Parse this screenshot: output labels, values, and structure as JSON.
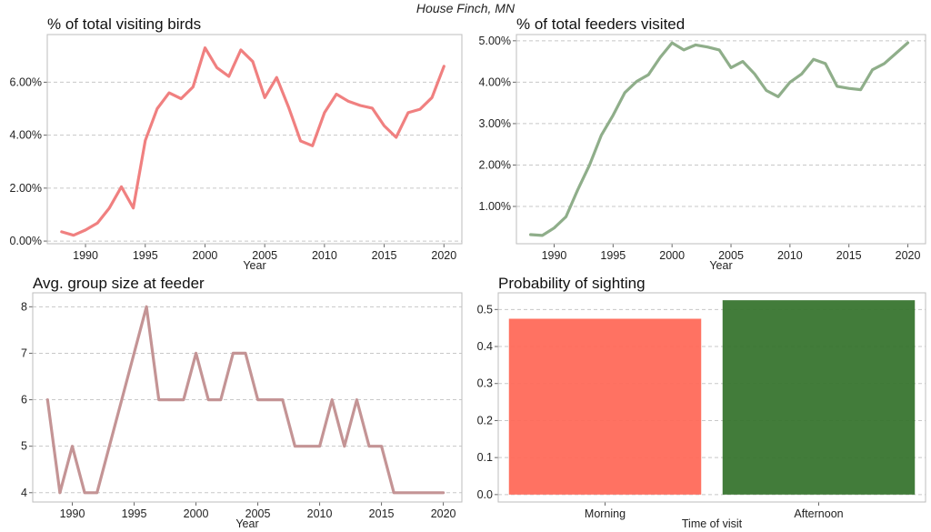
{
  "suptitle": "House Finch, MN",
  "colors": {
    "birds_line": "#f08080",
    "feeders_line": "#8fae8a",
    "group_line": "#c49495",
    "morning_bar": "#ff6a5a",
    "afternoon_bar": "#38752f"
  },
  "chart_data": [
    {
      "type": "line",
      "title": "% of total visiting birds",
      "xlabel": "Year",
      "ylabel": "",
      "x": [
        1988,
        1989,
        1990,
        1991,
        1992,
        1993,
        1994,
        1995,
        1996,
        1997,
        1998,
        1999,
        2000,
        2001,
        2002,
        2003,
        2004,
        2005,
        2006,
        2007,
        2008,
        2009,
        2010,
        2011,
        2012,
        2013,
        2014,
        2015,
        2016,
        2017,
        2018,
        2019,
        2020
      ],
      "values": [
        0.35,
        0.22,
        0.42,
        0.68,
        1.25,
        2.05,
        1.25,
        3.8,
        5.0,
        5.6,
        5.38,
        5.82,
        7.3,
        6.55,
        6.22,
        7.22,
        6.78,
        5.42,
        6.18,
        5.05,
        3.78,
        3.6,
        4.85,
        5.55,
        5.28,
        5.12,
        5.02,
        4.35,
        3.92,
        4.85,
        4.98,
        5.42,
        6.6
      ],
      "xlim": [
        1986.8,
        2021.5
      ],
      "ylim": [
        -0.1,
        7.8
      ],
      "xticks": [
        1990,
        1995,
        2000,
        2005,
        2010,
        2015,
        2020
      ],
      "xtick_labels": [
        "1990",
        "1995",
        "2000",
        "2005",
        "2010",
        "2015",
        "2020"
      ],
      "yticks": [
        0,
        2,
        4,
        6
      ],
      "ytick_labels": [
        "0.00%",
        "2.00%",
        "4.00%",
        "6.00%"
      ],
      "grid": true
    },
    {
      "type": "line",
      "title": "% of total feeders visited",
      "xlabel": "Year",
      "ylabel": "",
      "x": [
        1988,
        1989,
        1990,
        1991,
        1992,
        1993,
        1994,
        1995,
        1996,
        1997,
        1998,
        1999,
        2000,
        2001,
        2002,
        2003,
        2004,
        2005,
        2006,
        2007,
        2008,
        2009,
        2010,
        2011,
        2012,
        2013,
        2014,
        2015,
        2016,
        2017,
        2018,
        2019,
        2020
      ],
      "values": [
        0.32,
        0.3,
        0.48,
        0.75,
        1.4,
        2.0,
        2.72,
        3.2,
        3.75,
        4.02,
        4.18,
        4.6,
        4.95,
        4.78,
        4.9,
        4.85,
        4.78,
        4.35,
        4.5,
        4.2,
        3.8,
        3.65,
        4.0,
        4.2,
        4.55,
        4.45,
        3.9,
        3.85,
        3.82,
        4.3,
        4.45,
        4.7,
        4.95
      ],
      "xlim": [
        1986.8,
        2021.5
      ],
      "ylim": [
        0.1,
        5.15
      ],
      "xticks": [
        1990,
        1995,
        2000,
        2005,
        2010,
        2015,
        2020
      ],
      "xtick_labels": [
        "1990",
        "1995",
        "2000",
        "2005",
        "2010",
        "2015",
        "2020"
      ],
      "yticks": [
        1,
        2,
        3,
        4,
        5
      ],
      "ytick_labels": [
        "1.00%",
        "2.00%",
        "3.00%",
        "4.00%",
        "5.00%"
      ],
      "grid": true
    },
    {
      "type": "line",
      "title": "Avg. group size at feeder",
      "xlabel": "Year",
      "ylabel": "",
      "x": [
        1988,
        1989,
        1990,
        1991,
        1992,
        1993,
        1994,
        1995,
        1996,
        1997,
        1998,
        1999,
        2000,
        2001,
        2002,
        2003,
        2004,
        2005,
        2006,
        2007,
        2008,
        2009,
        2010,
        2011,
        2012,
        2013,
        2014,
        2015,
        2016,
        2017,
        2018,
        2019,
        2020
      ],
      "values": [
        6,
        4,
        5,
        4,
        4,
        5,
        6,
        7,
        8,
        6,
        6,
        6,
        7,
        6,
        6,
        7,
        7,
        6,
        6,
        6,
        5,
        5,
        5,
        6,
        5,
        6,
        5,
        5,
        4,
        4,
        4,
        4,
        4
      ],
      "xlim": [
        1986.8,
        2021.5
      ],
      "ylim": [
        3.8,
        8.3
      ],
      "xticks": [
        1990,
        1995,
        2000,
        2005,
        2010,
        2015,
        2020
      ],
      "xtick_labels": [
        "1990",
        "1995",
        "2000",
        "2005",
        "2010",
        "2015",
        "2020"
      ],
      "yticks": [
        4,
        5,
        6,
        7,
        8
      ],
      "ytick_labels": [
        "4",
        "5",
        "6",
        "7",
        "8"
      ],
      "grid": true
    },
    {
      "type": "bar",
      "title": "Probability of sighting",
      "xlabel": "Time of visit",
      "ylabel": "",
      "categories": [
        "Morning",
        "Afternoon"
      ],
      "values": [
        0.475,
        0.525
      ],
      "ylim": [
        -0.02,
        0.545
      ],
      "yticks": [
        0.0,
        0.1,
        0.2,
        0.3,
        0.4,
        0.5
      ],
      "ytick_labels": [
        "0.0",
        "0.1",
        "0.2",
        "0.3",
        "0.4",
        "0.5"
      ],
      "grid": true
    }
  ]
}
